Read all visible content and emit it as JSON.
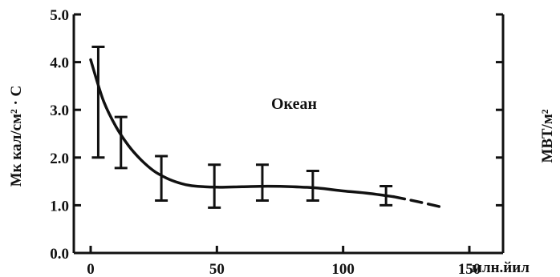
{
  "chart_data": {
    "type": "line",
    "ylabel_left": "Мк кал/см² · С",
    "ylabel_right": "МВТ/м²",
    "x_unit_label": "млн.йил",
    "annotation": "Океан",
    "xlim": [
      -10,
      160
    ],
    "ylim": [
      0,
      5
    ],
    "x_ticks": [
      0,
      50,
      100,
      150
    ],
    "x_tick_labels": [
      "0",
      "50",
      "100",
      "150"
    ],
    "y_ticks": [
      0,
      1,
      2,
      3,
      4,
      5
    ],
    "y_tick_labels": [
      "0.0",
      "1.0",
      "2.0",
      "3.0",
      "4.0",
      "5.0"
    ],
    "grid": false,
    "series": [
      {
        "values_x": [
          0,
          5,
          10,
          15,
          20,
          25,
          30,
          35,
          40,
          50,
          60,
          70,
          80,
          90,
          100,
          110,
          120
        ],
        "values_y": [
          4.05,
          3.2,
          2.65,
          2.25,
          1.95,
          1.72,
          1.57,
          1.47,
          1.41,
          1.38,
          1.39,
          1.4,
          1.39,
          1.36,
          1.3,
          1.25,
          1.18
        ],
        "style": "solid"
      },
      {
        "values_x": [
          120,
          130,
          140
        ],
        "values_y": [
          1.18,
          1.07,
          0.95
        ],
        "style": "dashed"
      }
    ],
    "error_bars": [
      {
        "x": 3,
        "low": 2.0,
        "high": 4.32
      },
      {
        "x": 12,
        "low": 1.78,
        "high": 2.85
      },
      {
        "x": 28,
        "low": 1.1,
        "high": 2.03
      },
      {
        "x": 49,
        "low": 0.95,
        "high": 1.85
      },
      {
        "x": 68,
        "low": 1.1,
        "high": 1.85
      },
      {
        "x": 88,
        "low": 1.1,
        "high": 1.72
      },
      {
        "x": 117,
        "low": 1.0,
        "high": 1.4
      }
    ],
    "colors": {
      "line": "#111111",
      "background": "#ffffff"
    }
  }
}
